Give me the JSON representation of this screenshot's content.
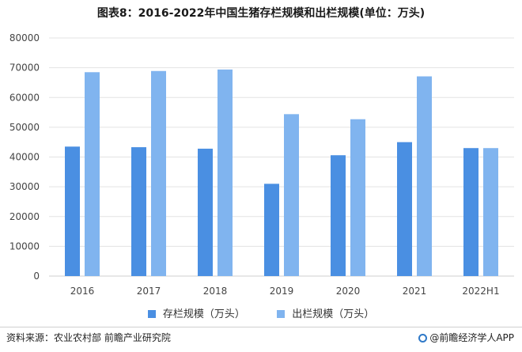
{
  "title": "图表8：2016-2022年中国生猪存栏规模和出栏规模(单位：万头)",
  "source": "资料来源：农业农村部 前瞻产业研究院",
  "brand": "@前瞻经济学人APP",
  "colors": {
    "series1": "#4a8fe2",
    "series2": "#80b4ef",
    "grid": "#e3e3e3",
    "axis": "#cfcfcf"
  },
  "chart_data": {
    "type": "bar",
    "categories": [
      "2016",
      "2017",
      "2018",
      "2019",
      "2020",
      "2021",
      "2022H1"
    ],
    "series": [
      {
        "name": "存栏规模（万头）",
        "values": [
          43500,
          43300,
          42800,
          31000,
          40600,
          45000,
          43000
        ]
      },
      {
        "name": "出栏规模（万头）",
        "values": [
          68500,
          68900,
          69400,
          54400,
          52700,
          67100,
          43000
        ]
      }
    ],
    "yticks": [
      0,
      10000,
      20000,
      30000,
      40000,
      50000,
      60000,
      70000,
      80000
    ],
    "ylim": [
      0,
      80000
    ],
    "grid": true,
    "legend_position": "bottom"
  }
}
